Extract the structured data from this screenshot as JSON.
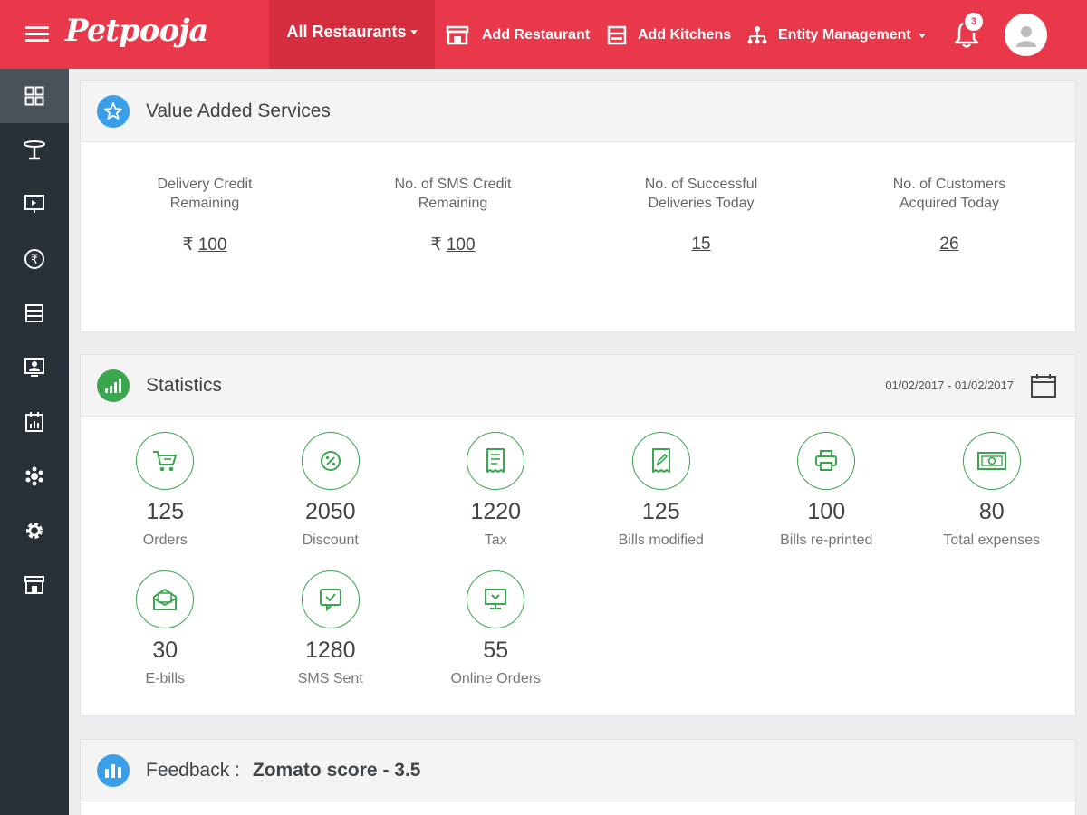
{
  "header": {
    "logo": "Petpooja",
    "nav_all": "All Restaurants",
    "add_restaurant": "Add Restaurant",
    "add_kitchens": "Add Kitchens",
    "entity_management": "Entity Management",
    "notification_count": "3",
    "colors": {
      "brand": "#e8384a",
      "brand_dark": "#d42e3f"
    }
  },
  "sidebar": {
    "items": [
      {
        "icon": "dashboard-icon"
      },
      {
        "icon": "table-icon"
      },
      {
        "icon": "monitor-icon"
      },
      {
        "icon": "rupee-icon"
      },
      {
        "icon": "list-icon"
      },
      {
        "icon": "display-user-icon"
      },
      {
        "icon": "report-icon"
      },
      {
        "icon": "snowflake-icon"
      },
      {
        "icon": "gear-icon"
      },
      {
        "icon": "store-icon"
      }
    ]
  },
  "vas": {
    "title": "Value Added Services",
    "items": [
      {
        "label": "Delivery Credit\nRemaining",
        "prefix": "₹",
        "value": "100"
      },
      {
        "label": "No. of SMS Credit\nRemaining",
        "prefix": "₹",
        "value": "100"
      },
      {
        "label": "No. of Successful\nDeliveries Today",
        "prefix": "",
        "value": "15"
      },
      {
        "label": "No. of Customers\nAcquired Today",
        "prefix": "",
        "value": "26"
      }
    ]
  },
  "statistics": {
    "title": "Statistics",
    "date_range": "01/02/2017 - 01/02/2017",
    "accent": "#3aa64e",
    "items": [
      {
        "value": "125",
        "label": "Orders",
        "icon": "cart-icon"
      },
      {
        "value": "2050",
        "label": "Discount",
        "icon": "discount-icon"
      },
      {
        "value": "1220",
        "label": "Tax",
        "icon": "receipt-icon"
      },
      {
        "value": "125",
        "label": "Bills modified",
        "icon": "bill-edit-icon"
      },
      {
        "value": "100",
        "label": "Bills re-printed",
        "icon": "printer-icon"
      },
      {
        "value": "80",
        "label": "Total expenses",
        "icon": "cash-icon"
      },
      {
        "value": "30",
        "label": "E-bills",
        "icon": "envelope-icon"
      },
      {
        "value": "1280",
        "label": "SMS Sent",
        "icon": "sms-icon"
      },
      {
        "value": "55",
        "label": "Online Orders",
        "icon": "online-order-icon"
      }
    ]
  },
  "feedback": {
    "title": "Feedback :",
    "score": "Zomato score - 3.5"
  }
}
